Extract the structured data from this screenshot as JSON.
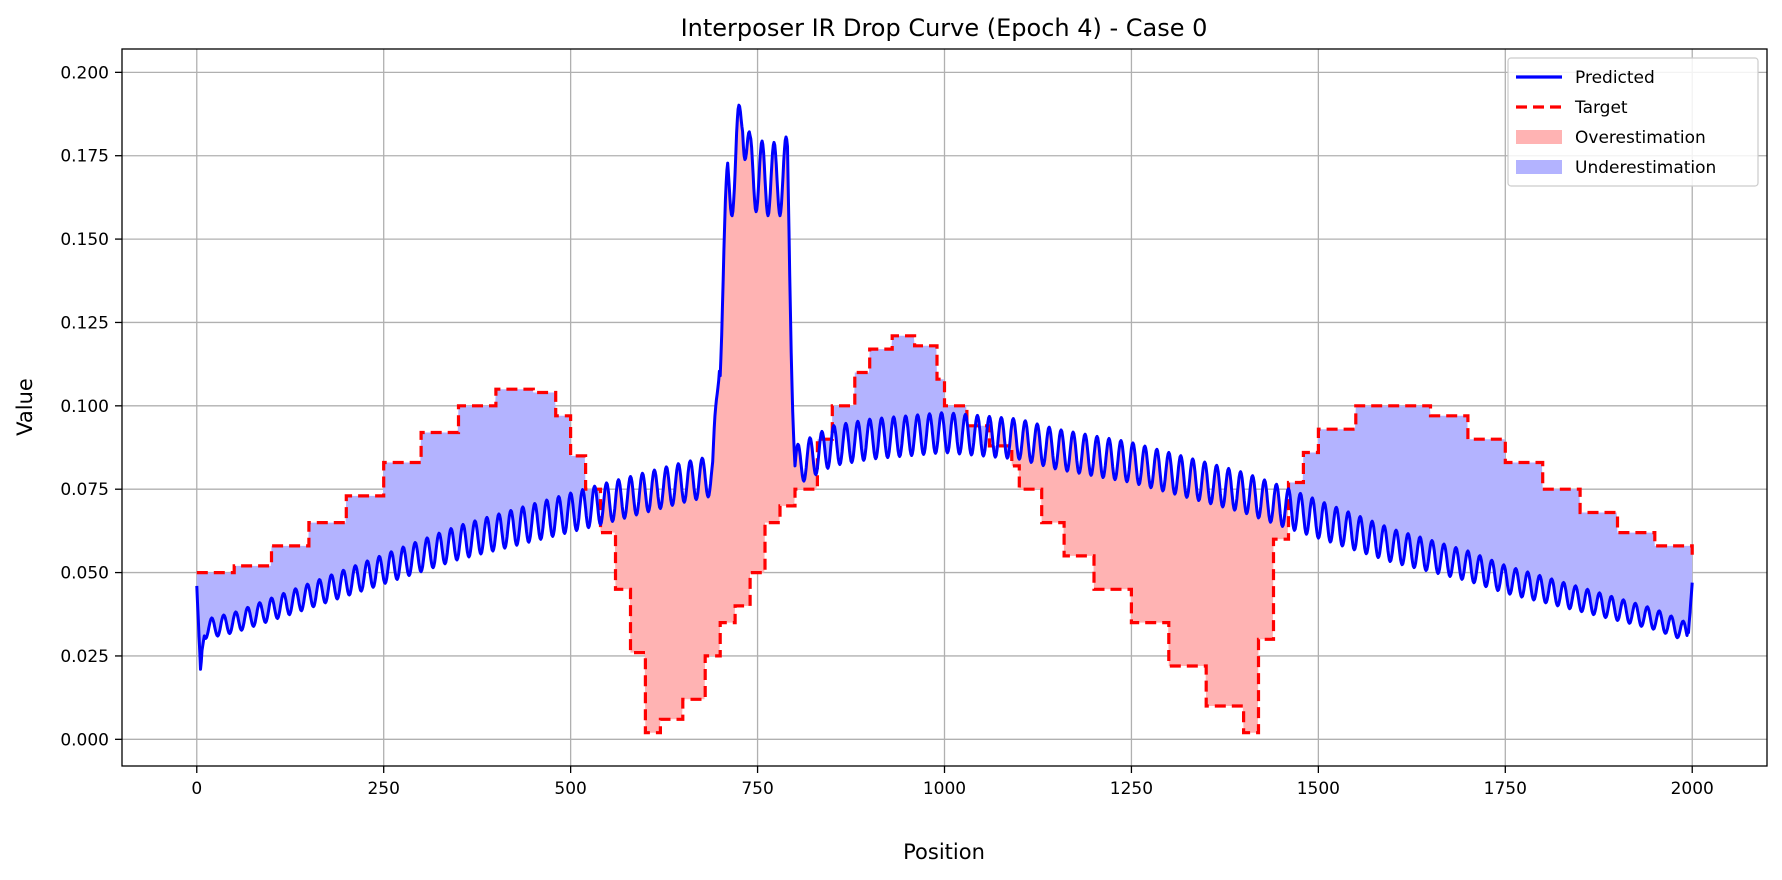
{
  "chart_data": {
    "type": "line",
    "title": "Interposer IR Drop Curve (Epoch 4) - Case 0",
    "xlabel": "Position",
    "ylabel": "Value",
    "xlim": [
      -100,
      2100
    ],
    "ylim": [
      -0.008,
      0.207
    ],
    "x_ticks": [
      0,
      250,
      500,
      750,
      1000,
      1250,
      1500,
      1750,
      2000
    ],
    "y_ticks": [
      0.0,
      0.025,
      0.05,
      0.075,
      0.1,
      0.125,
      0.15,
      0.175,
      0.2
    ],
    "y_tick_labels": [
      "0.000",
      "0.025",
      "0.050",
      "0.075",
      "0.100",
      "0.125",
      "0.150",
      "0.175",
      "0.200"
    ],
    "grid": true,
    "legend_position": "top-right",
    "legend": [
      "Predicted",
      "Target",
      "Overestimation",
      "Underestimation"
    ],
    "colors": {
      "predicted": "#0000ff",
      "target": "#ff0000",
      "overestimation": "#ffb3b3",
      "underestimation": "#b3b3ff"
    },
    "series": [
      {
        "name": "Predicted",
        "style": "solid",
        "x": [
          0,
          5,
          10,
          50,
          100,
          150,
          200,
          250,
          300,
          350,
          400,
          450,
          500,
          550,
          600,
          650,
          690,
          700,
          710,
          720,
          730,
          740,
          760,
          780,
          790,
          800,
          850,
          900,
          950,
          1000,
          1050,
          1100,
          1150,
          1200,
          1250,
          1300,
          1350,
          1400,
          1450,
          1500,
          1550,
          1600,
          1650,
          1700,
          1750,
          1800,
          1850,
          1900,
          1950,
          1995,
          2000
        ],
        "y": [
          0.046,
          0.021,
          0.033,
          0.035,
          0.039,
          0.043,
          0.047,
          0.051,
          0.055,
          0.059,
          0.062,
          0.065,
          0.068,
          0.071,
          0.074,
          0.077,
          0.079,
          0.12,
          0.165,
          0.17,
          0.19,
          0.17,
          0.168,
          0.168,
          0.17,
          0.082,
          0.088,
          0.09,
          0.091,
          0.092,
          0.091,
          0.09,
          0.087,
          0.085,
          0.083,
          0.08,
          0.077,
          0.074,
          0.07,
          0.066,
          0.062,
          0.058,
          0.055,
          0.052,
          0.048,
          0.045,
          0.042,
          0.039,
          0.036,
          0.032,
          0.047
        ]
      },
      {
        "name": "Target",
        "style": "dashed",
        "x": [
          0,
          50,
          100,
          150,
          200,
          250,
          300,
          350,
          400,
          450,
          480,
          500,
          520,
          540,
          560,
          580,
          600,
          620,
          650,
          680,
          700,
          720,
          740,
          760,
          780,
          800,
          830,
          850,
          880,
          900,
          930,
          960,
          990,
          1000,
          1030,
          1060,
          1090,
          1100,
          1130,
          1160,
          1200,
          1250,
          1300,
          1350,
          1400,
          1420,
          1440,
          1460,
          1480,
          1500,
          1550,
          1600,
          1650,
          1700,
          1750,
          1800,
          1850,
          1900,
          1950,
          2000
        ],
        "y": [
          0.05,
          0.052,
          0.058,
          0.065,
          0.073,
          0.083,
          0.092,
          0.1,
          0.105,
          0.104,
          0.097,
          0.085,
          0.075,
          0.062,
          0.045,
          0.026,
          0.002,
          0.006,
          0.012,
          0.025,
          0.035,
          0.04,
          0.05,
          0.065,
          0.07,
          0.075,
          0.09,
          0.1,
          0.11,
          0.117,
          0.121,
          0.118,
          0.108,
          0.1,
          0.094,
          0.088,
          0.082,
          0.075,
          0.065,
          0.055,
          0.045,
          0.035,
          0.022,
          0.01,
          0.002,
          0.03,
          0.06,
          0.077,
          0.086,
          0.093,
          0.1,
          0.1,
          0.097,
          0.09,
          0.083,
          0.075,
          0.068,
          0.062,
          0.058,
          0.055
        ]
      }
    ]
  }
}
